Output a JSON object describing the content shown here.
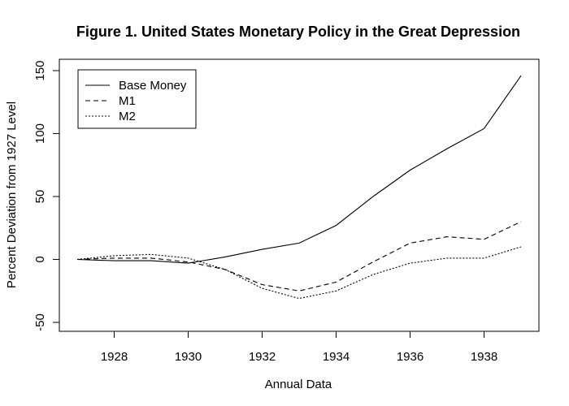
{
  "chart_data": {
    "type": "line",
    "title": "Figure 1.  United States Monetary Policy in the Great Depression",
    "xlabel": "Annual Data",
    "ylabel": "Percent Deviation from 1927 Level",
    "xlim": [
      1927,
      1939
    ],
    "ylim": [
      -50,
      150
    ],
    "x_ticks": [
      "1928",
      "1930",
      "1932",
      "1934",
      "1936",
      "1938"
    ],
    "y_ticks": [
      "-50",
      "0",
      "50",
      "100",
      "150"
    ],
    "grid": false,
    "legend_position": "top-left",
    "x": [
      1927,
      1928,
      1929,
      1930,
      1931,
      1932,
      1933,
      1934,
      1935,
      1936,
      1937,
      1938,
      1939
    ],
    "series": [
      {
        "name": "Base Money",
        "dash": "solid",
        "values": [
          0,
          -1,
          -1,
          -3,
          2,
          8,
          13,
          27,
          50,
          71,
          88,
          104,
          146
        ]
      },
      {
        "name": "M1",
        "dash": "dashed",
        "values": [
          0,
          1,
          1,
          -2,
          -8,
          -20,
          -25,
          -18,
          -2,
          13,
          18,
          16,
          30
        ]
      },
      {
        "name": "M2",
        "dash": "dotted",
        "values": [
          0,
          3,
          4,
          1,
          -8,
          -23,
          -31,
          -25,
          -12,
          -3,
          1,
          1,
          10
        ]
      }
    ]
  }
}
